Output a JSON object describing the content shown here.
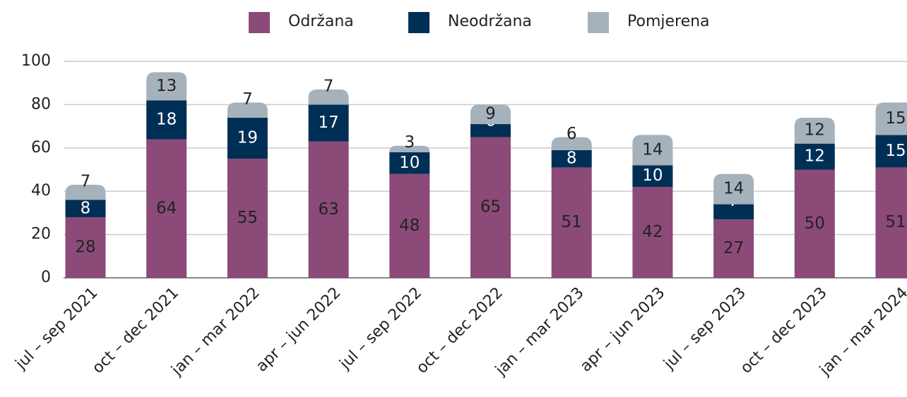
{
  "chart_data": {
    "type": "stacked_bar",
    "categories": [
      "jul – sep 2021",
      "oct – dec 2021",
      "jan – mar 2022",
      "apr – jun 2022",
      "jul – sep 2022",
      "oct – dec 2022",
      "jan – mar 2023",
      "apr – jun 2023",
      "jul – sep 2023",
      "oct – dec 2023",
      "jan – mar 2024"
    ],
    "series": [
      {
        "name": "Održana",
        "color": "#8b4a78",
        "values": [
          28,
          64,
          55,
          63,
          48,
          65,
          51,
          42,
          27,
          50,
          51
        ]
      },
      {
        "name": "Neodržana",
        "color": "#002f56",
        "values": [
          8,
          18,
          19,
          17,
          10,
          6,
          8,
          10,
          7,
          12,
          15
        ]
      },
      {
        "name": "Pomjerena",
        "color": "#a6b2bb",
        "values": [
          7,
          13,
          7,
          7,
          3,
          9,
          6,
          14,
          14,
          12,
          15
        ]
      }
    ],
    "ylim": [
      0,
      100
    ],
    "yticks": [
      0,
      20,
      40,
      60,
      80,
      100
    ],
    "grid": true,
    "legend": "top"
  }
}
